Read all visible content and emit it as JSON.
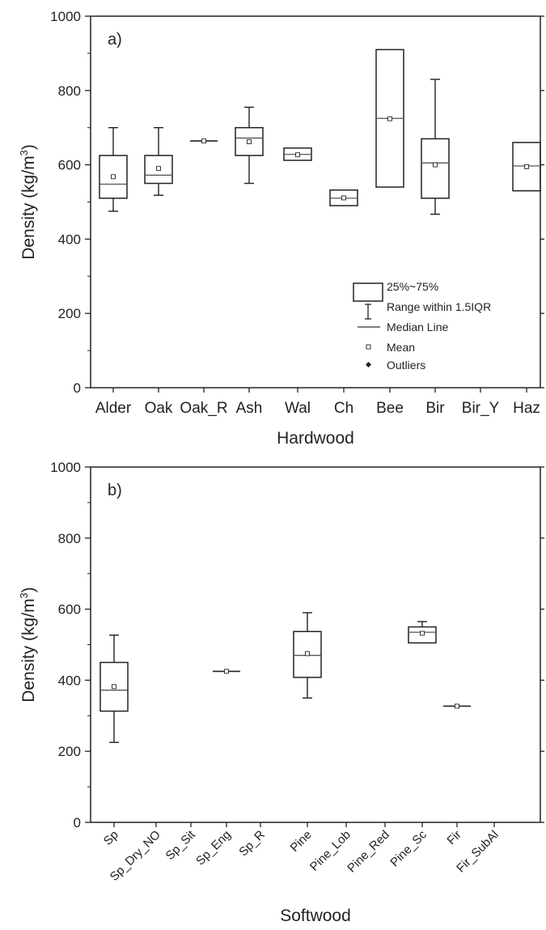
{
  "chart_data": [
    {
      "type": "box",
      "panel_label": "a)",
      "xlabel": "Hardwood",
      "ylabel": "Density (kg/m",
      "ylabel_sup": "3",
      "ylabel_close": ")",
      "ylim": [
        0,
        1000
      ],
      "yticks": [
        "0",
        "200",
        "400",
        "600",
        "800",
        "1000"
      ],
      "categories": [
        "Alder",
        "Oak",
        "Oak_R",
        "Ash",
        "Wal",
        "Ch",
        "Bee",
        "Bir",
        "Bir_Y",
        "Haz"
      ],
      "boxes": [
        {
          "category": "Alder",
          "q1": 510,
          "median": 548,
          "q3": 625,
          "whisker_low": 475,
          "whisker_high": 700,
          "mean": 568
        },
        {
          "category": "Oak",
          "q1": 550,
          "median": 572,
          "q3": 625,
          "whisker_low": 518,
          "whisker_high": 700,
          "mean": 590
        },
        {
          "category": "Oak_R",
          "q1": 664,
          "median": 664,
          "q3": 664,
          "whisker_low": 664,
          "whisker_high": 664,
          "mean": 664
        },
        {
          "category": "Ash",
          "q1": 625,
          "median": 672,
          "q3": 700,
          "whisker_low": 550,
          "whisker_high": 755,
          "mean": 662
        },
        {
          "category": "Wal",
          "q1": 612,
          "median": 628,
          "q3": 645,
          "whisker_low": 612,
          "whisker_high": 645,
          "mean": 627
        },
        {
          "category": "Ch",
          "q1": 490,
          "median": 510,
          "q3": 532,
          "whisker_low": 490,
          "whisker_high": 532,
          "mean": 511
        },
        {
          "category": "Bee",
          "q1": 540,
          "median": 725,
          "q3": 910,
          "whisker_low": 540,
          "whisker_high": 910,
          "mean": 724
        },
        {
          "category": "Bir",
          "q1": 510,
          "median": 605,
          "q3": 670,
          "whisker_low": 467,
          "whisker_high": 830,
          "mean": 600
        },
        {
          "category": "Bir_Y",
          "q1": null,
          "median": null,
          "q3": null,
          "whisker_low": null,
          "whisker_high": null,
          "mean": null
        },
        {
          "category": "Haz",
          "q1": 530,
          "median": 597,
          "q3": 660,
          "whisker_low": 530,
          "whisker_high": 660,
          "mean": 595
        }
      ],
      "legend": {
        "placement": "inside-bottom-right",
        "entries": [
          "25%~75%",
          "Range within 1.5IQR",
          "Median Line",
          "Mean",
          "Outliers"
        ]
      }
    },
    {
      "type": "box",
      "panel_label": "b)",
      "xlabel": "Softwood",
      "ylabel": "Density (kg/m",
      "ylabel_sup": "3",
      "ylabel_close": ")",
      "ylim": [
        0,
        1000
      ],
      "yticks": [
        "0",
        "200",
        "400",
        "600",
        "800",
        "1000"
      ],
      "categories": [
        "Sp",
        "Sp_Dry_NO",
        "Sp_Sit",
        "Sp_Eng",
        "Sp_R",
        "Pine",
        "Pine_Lob",
        "Pine_Red",
        "Pine_Sc",
        "Fir",
        "Fir_SubAl"
      ],
      "boxes": [
        {
          "category": "Sp",
          "q1": 313,
          "median": 372,
          "q3": 450,
          "whisker_low": 225,
          "whisker_high": 527,
          "mean": 382
        },
        {
          "category": "Sp_Dry_NO",
          "q1": null,
          "median": null,
          "q3": null,
          "whisker_low": null,
          "whisker_high": null,
          "mean": null
        },
        {
          "category": "Sp_Sit",
          "q1": null,
          "median": null,
          "q3": null,
          "whisker_low": null,
          "whisker_high": null,
          "mean": null
        },
        {
          "category": "Sp_Eng",
          "q1": 425,
          "median": 425,
          "q3": 425,
          "whisker_low": 425,
          "whisker_high": 425,
          "mean": 425
        },
        {
          "category": "Sp_R",
          "q1": null,
          "median": null,
          "q3": null,
          "whisker_low": null,
          "whisker_high": null,
          "mean": null
        },
        {
          "category": "Pine",
          "q1": 408,
          "median": 470,
          "q3": 537,
          "whisker_low": 350,
          "whisker_high": 590,
          "mean": 475
        },
        {
          "category": "Pine_Lob",
          "q1": null,
          "median": null,
          "q3": null,
          "whisker_low": null,
          "whisker_high": null,
          "mean": null
        },
        {
          "category": "Pine_Red",
          "q1": null,
          "median": null,
          "q3": null,
          "whisker_low": null,
          "whisker_high": null,
          "mean": null
        },
        {
          "category": "Pine_Sc",
          "q1": 505,
          "median": 535,
          "q3": 550,
          "whisker_low": 505,
          "whisker_high": 565,
          "mean": 532
        },
        {
          "category": "Fir",
          "q1": 327,
          "median": 327,
          "q3": 327,
          "whisker_low": 327,
          "whisker_high": 327,
          "mean": 327
        },
        {
          "category": "Fir_SubAl",
          "q1": null,
          "median": null,
          "q3": null,
          "whisker_low": null,
          "whisker_high": null,
          "mean": null
        }
      ]
    }
  ]
}
